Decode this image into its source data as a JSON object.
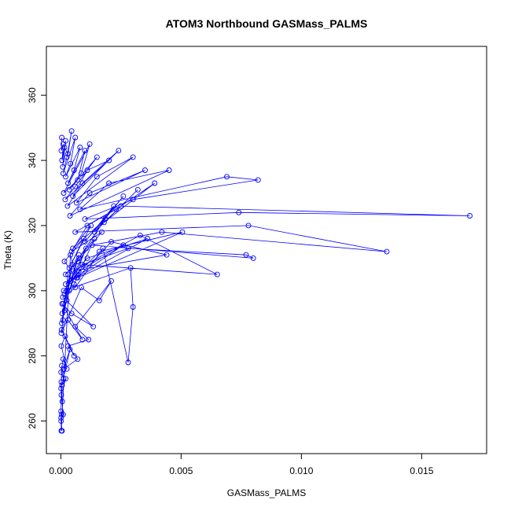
{
  "chart_data": {
    "type": "scatter",
    "title": "ATOM3 Northbound GASMass_PALMS",
    "xlabel": "GASMass_PALMS",
    "ylabel": "Theta (K)",
    "xlim": [
      -0.0006,
      0.0177
    ],
    "ylim": [
      250,
      375
    ],
    "x_ticks": [
      0.0,
      0.005,
      0.01,
      0.015
    ],
    "x_tick_labels": [
      "0.000",
      "0.005",
      "0.010",
      "0.015"
    ],
    "y_ticks": [
      260,
      280,
      300,
      320,
      340,
      360
    ],
    "y_tick_labels": [
      "260",
      "280",
      "300",
      "320",
      "340",
      "360"
    ],
    "grid": false,
    "marker": "open-circle",
    "line": true,
    "color": "#0000ff",
    "series": [
      {
        "x": [
          4e-05,
          2e-05,
          0.0001,
          5e-05,
          0.0002,
          8e-05,
          0.00015,
          0.0003,
          0.00045,
          0.00025,
          0.0001,
          0.0006,
          0.0004,
          0.0002,
          0.0008,
          0.00055,
          0.0003,
          0.001,
          0.0007,
          0.00012,
          0.0012,
          0.00085,
          0.00035,
          0.0015,
          0.0006,
          0.00018,
          0.002,
          0.0011,
          0.0005,
          0.0024,
          0.0009,
          0.00028,
          0.003,
          0.0015,
          0.00065,
          0.0035,
          0.0012,
          0.00038,
          0.0045,
          0.002,
          0.0008,
          0.0069,
          0.0082,
          0.003,
          0.001,
          0.0074,
          0.017,
          0.0025,
          0.0006,
          0.0078,
          0.01355,
          0.0042,
          0.0013,
          0.008,
          0.0077,
          0.0028,
          0.0009,
          0.0065,
          0.0033,
          0.0005,
          0.0044,
          0.0021,
          0.0007,
          0.00505,
          0.0016,
          0.0004,
          0.0036,
          0.0011,
          0.0002,
          0.0026,
          0.00075,
          0.00012,
          0.0029,
          0.003,
          0.0028,
          0.00175,
          0.0006,
          8e-05,
          0.00135,
          0.00045,
          5e-05,
          0.0009,
          0.0003,
          3e-05,
          0.00055,
          0.00018,
          2e-05,
          0.00025,
          0.0001,
          1e-05,
          0.00012,
          4e-05,
          1e-05,
          6e-05,
          2e-05,
          1e-05,
          3e-05,
          1e-05,
          2e-05,
          0.0004,
          0.00065,
          0.00015,
          0.00095,
          0.00035,
          0.00125,
          0.0005,
          0.00185,
          0.00075,
          0.0022,
          0.001,
          0.0026,
          0.0014,
          0.0032,
          0.0018,
          0.0039,
          0.0023,
          0.0011,
          0.00045,
          0.0017,
          0.0007,
          0.0002,
          0.0014,
          0.00055,
          0.00015,
          0.00105,
          0.00035,
          0.0001,
          0.00075,
          0.00025,
          6e-05,
          0.00048,
          0.00016,
          4e-05,
          0.0003,
          9e-05,
          2e-05,
          0.00085,
          0.0016,
          0.0021,
          0.0006,
          0.00115,
          0.0003,
          0.0007,
          0.00012,
          0.00038,
          5e-05,
          0.0002,
          2e-05,
          0.0001,
          1e-05,
          5e-05
        ],
        "y": [
          347,
          343,
          345,
          340,
          346,
          338,
          344,
          342,
          349,
          341,
          336,
          347,
          339,
          335,
          344,
          337,
          333,
          343,
          334,
          330,
          345,
          336,
          331,
          341,
          332,
          328,
          340,
          337,
          329,
          343,
          333,
          326,
          341,
          335,
          327,
          337,
          330,
          323,
          337,
          333,
          325,
          335,
          334,
          328,
          322,
          324,
          323,
          326,
          318,
          320,
          312,
          318,
          314,
          310,
          311,
          313,
          308,
          305,
          317,
          306,
          311,
          315,
          304,
          318,
          312,
          303,
          316,
          310,
          302,
          314,
          306,
          300,
          307,
          295,
          278,
          313,
          301,
          298,
          289,
          293,
          296,
          285,
          291,
          288,
          280,
          286,
          283,
          276,
          279,
          275,
          273,
          277,
          270,
          266,
          272,
          263,
          262,
          260,
          257,
          311,
          304,
          309,
          316,
          307,
          320,
          313,
          322,
          310,
          326,
          315,
          329,
          318,
          331,
          321,
          333,
          325,
          320,
          312,
          318,
          309,
          305,
          316,
          302,
          299,
          313,
          300,
          296,
          311,
          297,
          293,
          308,
          294,
          290,
          305,
          291,
          287,
          301,
          297,
          303,
          289,
          285,
          283,
          279,
          276,
          282,
          271,
          273,
          268,
          262,
          261,
          257
        ]
      }
    ]
  }
}
